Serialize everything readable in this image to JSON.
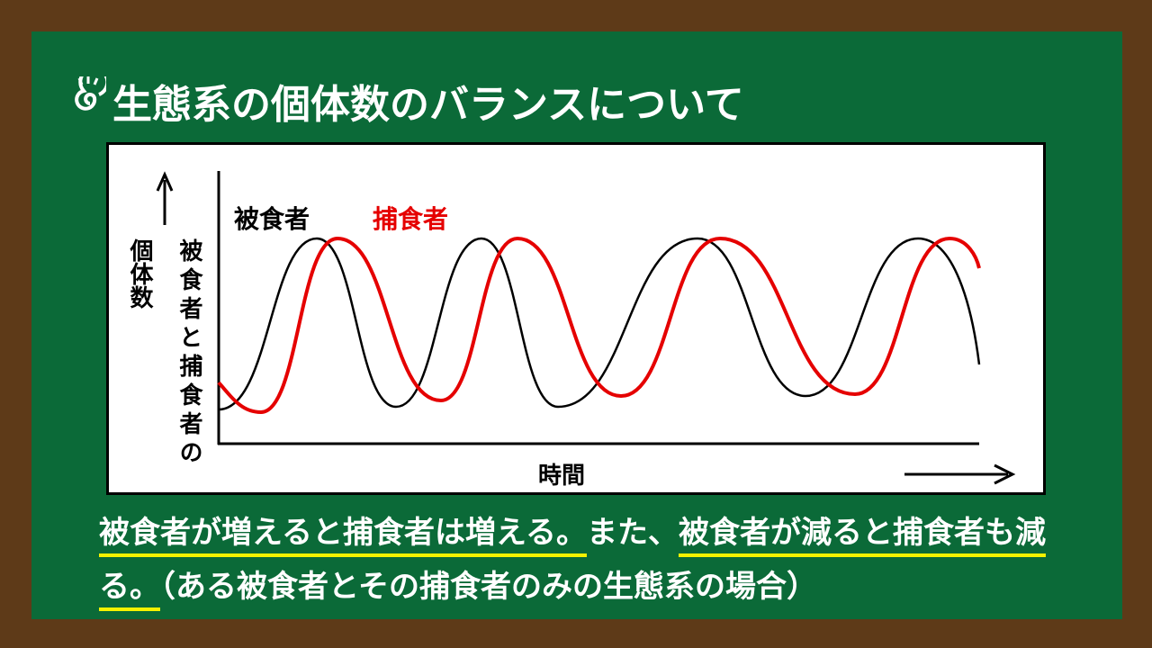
{
  "title": "生態系の個体数のバランスについて",
  "diagram": {
    "prey_label": "被食者",
    "predator_label": "捕食者",
    "y_axis_label": "個体数",
    "y_axis_sublabel": "被食者と捕食者の",
    "x_axis_label": "時間"
  },
  "caption": [
    {
      "text": "被食者が増えると捕食者は増える。",
      "underline": true
    },
    {
      "text": "また、",
      "underline": false
    },
    {
      "text": "被食者が減ると捕食者も減る。",
      "underline": true
    },
    {
      "text": "（ある被食者とその捕食者のみの生態系の場合）",
      "underline": false
    }
  ]
}
